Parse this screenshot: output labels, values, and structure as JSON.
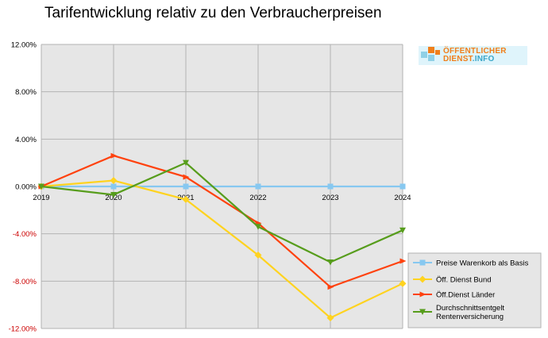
{
  "chart_data": {
    "type": "line",
    "title": "Tarifentwicklung relativ zu den Verbraucherpreisen",
    "x": [
      "2019",
      "2020",
      "2021",
      "2022",
      "2023",
      "2024"
    ],
    "ylim": [
      -0.12,
      0.12
    ],
    "yticks": [
      {
        "value": 0.12,
        "label": "12.00%"
      },
      {
        "value": 0.08,
        "label": "8.00%"
      },
      {
        "value": 0.04,
        "label": "4.00%"
      },
      {
        "value": 0.0,
        "label": "0.00%"
      },
      {
        "value": -0.04,
        "label": "-4.00%"
      },
      {
        "value": -0.08,
        "label": "-8.00%"
      },
      {
        "value": -0.12,
        "label": "-12.00%"
      }
    ],
    "grid": true,
    "legend_position": "bottom-right",
    "series": [
      {
        "name": "Preise Warenkorb als Basis",
        "color": "#87c8f0",
        "marker": "square",
        "values": [
          0.0,
          0.0,
          0.0,
          0.0,
          0.0,
          0.0
        ]
      },
      {
        "name": "Öff. Dienst Bund",
        "color": "#ffd320",
        "marker": "diamond",
        "values": [
          0.0,
          0.005,
          -0.011,
          -0.058,
          -0.111,
          -0.082
        ]
      },
      {
        "name": "Öff.Dienst Länder",
        "color": "#ff420e",
        "marker": "triangle-right",
        "values": [
          0.0,
          0.026,
          0.008,
          -0.031,
          -0.085,
          -0.063
        ]
      },
      {
        "name": "Durchschnittsentgelt Rentenversicherung",
        "name_lines": [
          "Durchschnittsentgelt",
          "Rentenversicherung"
        ],
        "color": "#579d1c",
        "marker": "triangle-down",
        "values": [
          0.0,
          -0.007,
          0.02,
          -0.034,
          -0.064,
          -0.037
        ]
      }
    ]
  },
  "logo": {
    "line1": "ÖFFENTLICHER",
    "line2": "DIENST",
    "line2_suffix": ".INFO"
  }
}
